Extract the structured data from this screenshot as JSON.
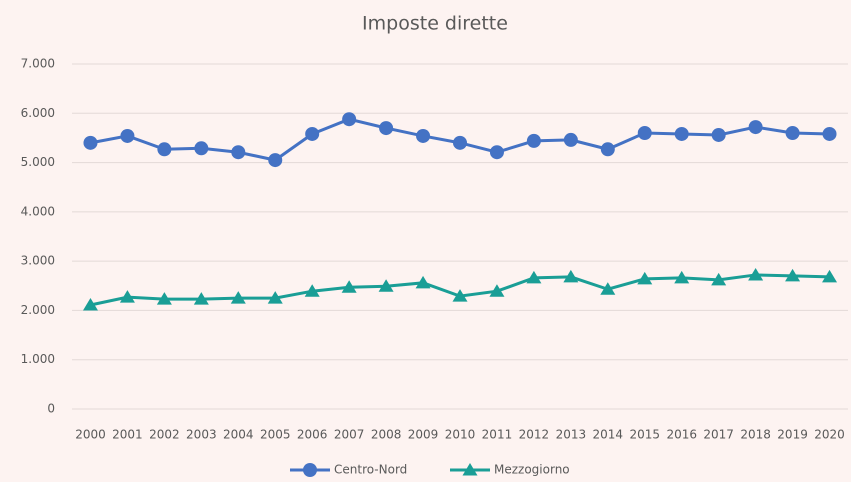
{
  "chart_data": {
    "type": "line",
    "title": "Imposte dirette",
    "categories": [
      "2000",
      "2001",
      "2002",
      "2003",
      "2004",
      "2005",
      "2006",
      "2007",
      "2008",
      "2009",
      "2010",
      "2011",
      "2012",
      "2013",
      "2014",
      "2015",
      "2016",
      "2017",
      "2018",
      "2019",
      "2020"
    ],
    "series": [
      {
        "name": "Centro-Nord",
        "color": "#4472c4",
        "marker": "circle",
        "values": [
          5400,
          5540,
          5270,
          5290,
          5210,
          5050,
          5580,
          5880,
          5700,
          5540,
          5400,
          5210,
          5440,
          5460,
          5270,
          5600,
          5580,
          5560,
          5720,
          5600,
          5580
        ]
      },
      {
        "name": "Mezzogiorno",
        "color": "#1a9e96",
        "marker": "triangle",
        "values": [
          2110,
          2270,
          2230,
          2230,
          2250,
          2250,
          2390,
          2470,
          2490,
          2560,
          2290,
          2390,
          2660,
          2680,
          2430,
          2640,
          2660,
          2620,
          2720,
          2700,
          2680
        ]
      }
    ],
    "ylim": [
      0,
      7000
    ],
    "yticks": [
      0,
      {
        "value": 1000,
        "label": "1.000"
      },
      {
        "value": 2000,
        "label": "2.000"
      },
      {
        "value": 3000,
        "label": "3.000"
      },
      {
        "value": 4000,
        "label": "4.000"
      },
      {
        "value": 5000,
        "label": "5.000"
      },
      {
        "value": 6000,
        "label": "6.000"
      },
      {
        "value": 7000,
        "label": "7.000"
      }
    ],
    "grid": true,
    "legend": "bottom"
  }
}
